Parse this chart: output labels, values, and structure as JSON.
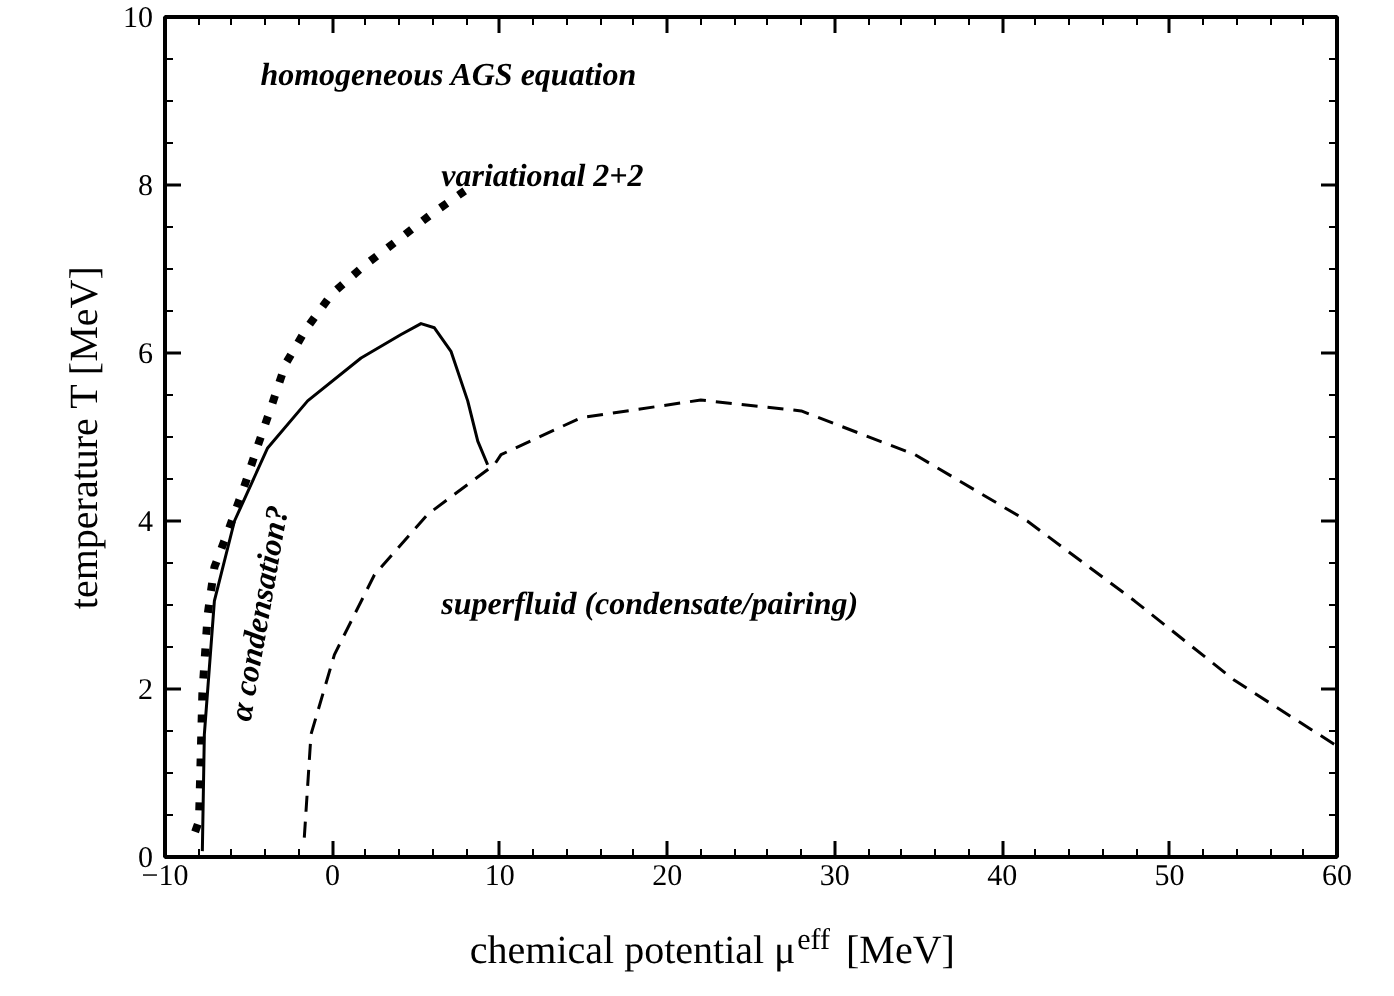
{
  "chart_data": {
    "type": "line",
    "xlabel": "chemical potential μ$^{eff}$ [MeV]",
    "ylabel": "temperature T [MeV]",
    "xlim": [
      -10,
      60
    ],
    "xticks": [
      -10,
      0,
      10,
      20,
      30,
      40,
      50,
      60
    ],
    "ylim": [
      0,
      10
    ],
    "yticks": [
      0,
      2,
      4,
      6,
      8,
      10
    ],
    "grid": false,
    "marker": "none",
    "series": [
      {
        "color": "#000000",
        "line_style": "dotted",
        "x": [
          -8.2,
          -7.97,
          -7.77,
          -7.45,
          -7.05,
          -6.14,
          -5.27,
          -4.47,
          -3.67,
          -2.8,
          -1.56,
          -0.05,
          1.9,
          3.81,
          5.89,
          7.9
        ],
        "values": [
          0.3,
          0.43,
          1.94,
          2.89,
          3.45,
          3.93,
          4.41,
          4.89,
          5.35,
          5.87,
          6.29,
          6.7,
          7.04,
          7.33,
          7.65,
          7.93
        ]
      },
      {
        "color": "#000000",
        "line_style": "solid",
        "x": [
          -7.77,
          -7.65,
          -7.05,
          -5.85,
          -3.87,
          -1.48,
          1.71,
          4.1,
          5.29,
          6.09,
          7.08,
          8.08,
          8.68,
          9.27
        ],
        "values": [
          0.07,
          1.46,
          3.05,
          4.0,
          4.87,
          5.43,
          5.94,
          6.22,
          6.35,
          6.3,
          6.02,
          5.43,
          4.95,
          4.67
        ]
      },
      {
        "color": "#000000",
        "line_style": "dashed",
        "x": [
          -1.68,
          -1.28,
          0.12,
          2.51,
          5.69,
          9.67,
          10.07,
          14.85,
          22.0,
          28.0,
          34.8,
          41.5,
          47.9,
          53.9,
          59.85
        ],
        "values": [
          0.23,
          1.46,
          2.41,
          3.36,
          4.08,
          4.67,
          4.79,
          5.23,
          5.44,
          5.31,
          4.79,
          4.0,
          3.05,
          2.1,
          1.34
        ]
      }
    ],
    "annotations": [
      "homogeneous AGS equation",
      "variational 2+2",
      "superfluid (condensate/pairing)",
      "α condensation?"
    ]
  }
}
